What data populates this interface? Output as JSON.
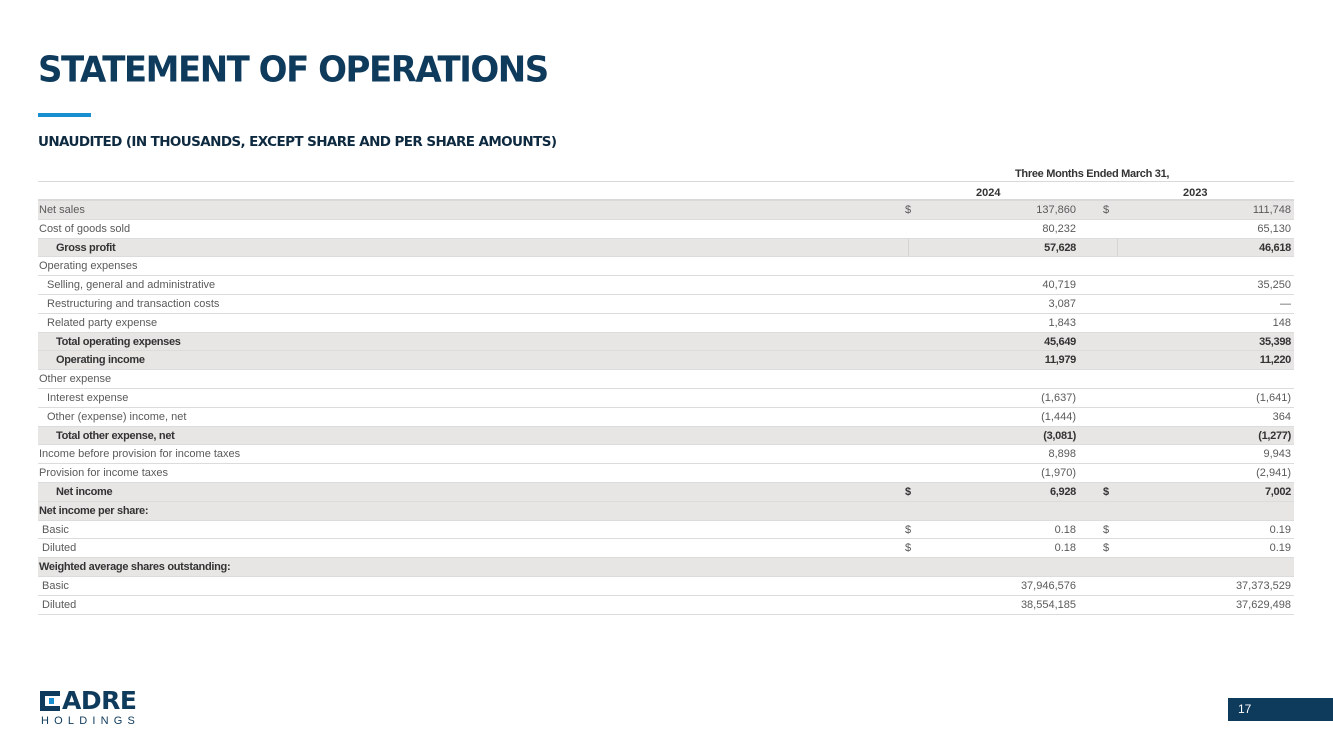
{
  "title": "STATEMENT OF OPERATIONS",
  "subtitle": "UNAUDITED (IN THOUSANDS, EXCEPT SHARE AND PER SHARE AMOUNTS)",
  "table": {
    "period_header": "Three Months Ended March 31,",
    "years": [
      "2024",
      "2023"
    ],
    "rows": [
      {
        "label": "Net sales",
        "cur1": "$",
        "v1": "137,860",
        "cur2": "$",
        "v2": "111,748",
        "shaded": true,
        "bold": false,
        "indent": 0
      },
      {
        "label": "Cost of goods sold",
        "cur1": "",
        "v1": "80,232",
        "cur2": "",
        "v2": "65,130",
        "shaded": false,
        "bold": false,
        "indent": 0
      },
      {
        "label": "Gross profit",
        "cur1": "",
        "v1": "57,628",
        "cur2": "",
        "v2": "46,618",
        "shaded": true,
        "bold": true,
        "indent": 3
      },
      {
        "label": "Operating expenses",
        "cur1": "",
        "v1": "",
        "cur2": "",
        "v2": "",
        "shaded": false,
        "bold": false,
        "indent": 0
      },
      {
        "label": "Selling, general and administrative",
        "cur1": "",
        "v1": "40,719",
        "cur2": "",
        "v2": "35,250",
        "shaded": false,
        "bold": false,
        "indent": 1
      },
      {
        "label": "Restructuring and transaction costs",
        "cur1": "",
        "v1": "3,087",
        "cur2": "",
        "v2": "—",
        "shaded": false,
        "bold": false,
        "indent": 1
      },
      {
        "label": "Related party expense",
        "cur1": "",
        "v1": "1,843",
        "cur2": "",
        "v2": "148",
        "shaded": false,
        "bold": false,
        "indent": 1
      },
      {
        "label": "Total operating expenses",
        "cur1": "",
        "v1": "45,649",
        "cur2": "",
        "v2": "35,398",
        "shaded": true,
        "bold": true,
        "indent": 3
      },
      {
        "label": "Operating income",
        "cur1": "",
        "v1": "11,979",
        "cur2": "",
        "v2": "11,220",
        "shaded": true,
        "bold": true,
        "indent": 3
      },
      {
        "label": "Other expense",
        "cur1": "",
        "v1": "",
        "cur2": "",
        "v2": "",
        "shaded": false,
        "bold": false,
        "indent": 0
      },
      {
        "label": "Interest expense",
        "cur1": "",
        "v1": "(1,637)",
        "cur2": "",
        "v2": "(1,641)",
        "shaded": false,
        "bold": false,
        "indent": 1
      },
      {
        "label": "Other (expense) income, net",
        "cur1": "",
        "v1": "(1,444)",
        "cur2": "",
        "v2": "364",
        "shaded": false,
        "bold": false,
        "indent": 1
      },
      {
        "label": "Total other expense, net",
        "cur1": "",
        "v1": "(3,081)",
        "cur2": "",
        "v2": "(1,277)",
        "shaded": true,
        "bold": true,
        "indent": 3
      },
      {
        "label": "Income before provision for income taxes",
        "cur1": "",
        "v1": "8,898",
        "cur2": "",
        "v2": "9,943",
        "shaded": false,
        "bold": false,
        "indent": 0
      },
      {
        "label": "Provision for income taxes",
        "cur1": "",
        "v1": "(1,970)",
        "cur2": "",
        "v2": "(2,941)",
        "shaded": false,
        "bold": false,
        "indent": 0
      },
      {
        "label": "Net income",
        "cur1": "$",
        "v1": "6,928",
        "cur2": "$",
        "v2": "7,002",
        "shaded": true,
        "bold": true,
        "indent": 3
      },
      {
        "label": "Net income per share:",
        "cur1": "",
        "v1": "",
        "cur2": "",
        "v2": "",
        "shaded": true,
        "bold": true,
        "indent": 0
      },
      {
        "label": "Basic",
        "cur1": "$",
        "v1": "0.18",
        "cur2": "$",
        "v2": "0.19",
        "shaded": false,
        "bold": false,
        "indent": 2
      },
      {
        "label": "Diluted",
        "cur1": "$",
        "v1": "0.18",
        "cur2": "$",
        "v2": "0.19",
        "shaded": false,
        "bold": false,
        "indent": 2
      },
      {
        "label": "Weighted average shares outstanding:",
        "cur1": "",
        "v1": "",
        "cur2": "",
        "v2": "",
        "shaded": true,
        "bold": true,
        "indent": 0
      },
      {
        "label": "Basic",
        "cur1": "",
        "v1": "37,946,576",
        "cur2": "",
        "v2": "37,373,529",
        "shaded": false,
        "bold": false,
        "indent": 2
      },
      {
        "label": "Diluted",
        "cur1": "",
        "v1": "38,554,185",
        "cur2": "",
        "v2": "37,629,498",
        "shaded": false,
        "bold": false,
        "indent": 2
      }
    ]
  },
  "logo": {
    "word": "ADRE",
    "sub": "HOLDINGS"
  },
  "page_number": "17",
  "colors": {
    "navy": "#0e3a5c",
    "accent": "#1a8fd0",
    "shade": "#e8e6e5"
  }
}
